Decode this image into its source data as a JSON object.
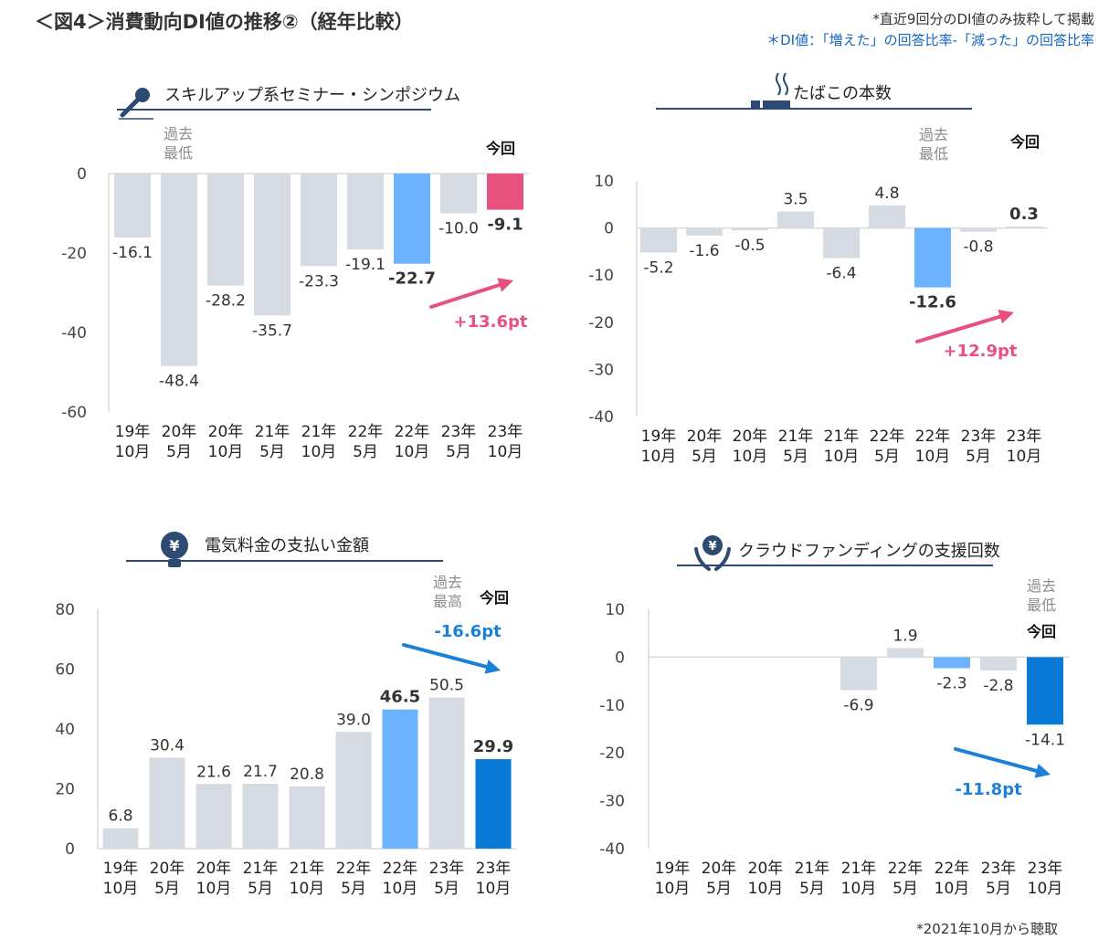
{
  "header": {
    "title": "＜図4＞消費動向DI値の推移②（経年比較）",
    "note1": "*直近9回分のDI値のみ抜粋して掲載",
    "note2": "＊DI値：「増えた」の回答比率-「減った」の回答比率"
  },
  "footnote": "*2021年10月から聴取",
  "colors": {
    "gray": "#d5dae3",
    "lightblue": "#6bb3ff",
    "pink": "#e8507d",
    "blue": "#0a7ad6",
    "navy": "#2d4a73",
    "arrowPink": "#e8507d",
    "arrowBlue": "#1c80d8"
  },
  "chart_data": [
    {
      "type": "bar",
      "title": "スキルアップ系セミナー・シンポジウム",
      "icon": "microphone-icon",
      "categories": [
        "19年\n10月",
        "20年\n5月",
        "20年\n10月",
        "21年\n5月",
        "21年\n10月",
        "22年\n5月",
        "22年\n10月",
        "23年\n5月",
        "23年\n10月"
      ],
      "values": [
        -16.1,
        -48.4,
        -28.2,
        -35.7,
        -23.3,
        -19.1,
        -22.7,
        -10.0,
        -9.1
      ],
      "labels": [
        "-16.1",
        "-48.4",
        "-28.2",
        "-35.7",
        "-23.3",
        "-19.1",
        "-22.7",
        "-10.0",
        "-9.1"
      ],
      "bar_colors": [
        "gray",
        "gray",
        "gray",
        "gray",
        "gray",
        "gray",
        "lightblue",
        "gray",
        "pink"
      ],
      "bold": [
        6,
        8
      ],
      "ylim": [
        -60,
        0
      ],
      "yticks": [
        0,
        -20,
        -40,
        -60
      ],
      "marker_low": "過去\n最低",
      "marker_low_index": 1,
      "marker_now": "今回",
      "change": "+13.6pt",
      "change_dir": "up",
      "change_color": "arrowPink"
    },
    {
      "type": "bar",
      "title": "たばこの本数",
      "icon": "cigarette-icon",
      "categories": [
        "19年\n10月",
        "20年\n5月",
        "20年\n10月",
        "21年\n5月",
        "21年\n10月",
        "22年\n5月",
        "22年\n10月",
        "23年\n5月",
        "23年\n10月"
      ],
      "values": [
        -5.2,
        -1.6,
        -0.5,
        3.5,
        -6.4,
        4.8,
        -12.6,
        -0.8,
        0.3
      ],
      "labels": [
        "-5.2",
        "-1.6",
        "-0.5",
        "3.5",
        "-6.4",
        "4.8",
        "-12.6",
        "-0.8",
        "0.3"
      ],
      "bar_colors": [
        "gray",
        "gray",
        "gray",
        "gray",
        "gray",
        "gray",
        "lightblue",
        "gray",
        "gray"
      ],
      "bold": [
        6,
        8
      ],
      "ylim": [
        -40,
        10
      ],
      "yticks": [
        10,
        0,
        -10,
        -20,
        -30,
        -40
      ],
      "marker_low": "過去\n最低",
      "marker_low_index": 6,
      "marker_now": "今回",
      "change": "+12.9pt",
      "change_dir": "up",
      "change_color": "arrowPink"
    },
    {
      "type": "bar",
      "title": "電気料金の支払い金額",
      "icon": "lightbulb-yen-icon",
      "categories": [
        "19年\n10月",
        "20年\n5月",
        "20年\n10月",
        "21年\n5月",
        "21年\n10月",
        "22年\n5月",
        "22年\n10月",
        "23年\n5月",
        "23年\n10月"
      ],
      "values": [
        6.8,
        30.4,
        21.6,
        21.7,
        20.8,
        39.0,
        46.5,
        50.5,
        29.9
      ],
      "labels": [
        "6.8",
        "30.4",
        "21.6",
        "21.7",
        "20.8",
        "39.0",
        "46.5",
        "50.5",
        "29.9"
      ],
      "bar_colors": [
        "gray",
        "gray",
        "gray",
        "gray",
        "gray",
        "gray",
        "lightblue",
        "gray",
        "blue"
      ],
      "bold": [
        6,
        8
      ],
      "ylim": [
        0,
        80
      ],
      "yticks": [
        80,
        60,
        40,
        20,
        0
      ],
      "marker_low": "過去\n最高",
      "marker_low_index": 7,
      "marker_now": "今回",
      "change": "-16.6pt",
      "change_dir": "down",
      "change_color": "arrowBlue"
    },
    {
      "type": "bar",
      "title": "クラウドファンディングの支援回数",
      "icon": "hands-yen-icon",
      "categories": [
        "19年\n10月",
        "20年\n5月",
        "20年\n10月",
        "21年\n5月",
        "21年\n10月",
        "22年\n5月",
        "22年\n10月",
        "23年\n5月",
        "23年\n10月"
      ],
      "values": [
        null,
        null,
        null,
        null,
        -6.9,
        1.9,
        -2.3,
        -2.8,
        -14.1
      ],
      "labels": [
        "",
        "",
        "",
        "",
        "-6.9",
        "1.9",
        "-2.3",
        "-2.8",
        "-14.1"
      ],
      "bar_colors": [
        "gray",
        "gray",
        "gray",
        "gray",
        "gray",
        "gray",
        "lightblue",
        "gray",
        "blue"
      ],
      "bold": [],
      "ylim": [
        -40,
        10
      ],
      "yticks": [
        10,
        0,
        -10,
        -20,
        -30,
        -40
      ],
      "marker_low": "過去\n最低",
      "marker_low_index": 8,
      "marker_now": "今回",
      "change": "-11.8pt",
      "change_dir": "down",
      "change_color": "arrowBlue"
    }
  ]
}
